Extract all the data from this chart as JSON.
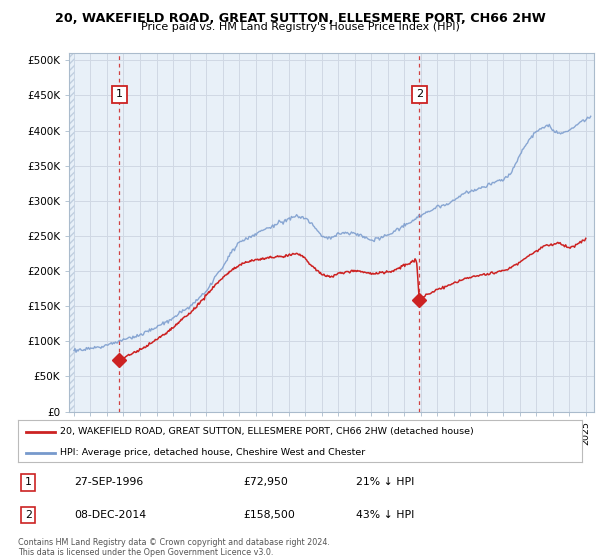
{
  "title1": "20, WAKEFIELD ROAD, GREAT SUTTON, ELLESMERE PORT, CH66 2HW",
  "title2": "Price paid vs. HM Land Registry's House Price Index (HPI)",
  "ylabel_ticks": [
    "£0",
    "£50K",
    "£100K",
    "£150K",
    "£200K",
    "£250K",
    "£300K",
    "£350K",
    "£400K",
    "£450K",
    "£500K"
  ],
  "ylabel_values": [
    0,
    50000,
    100000,
    150000,
    200000,
    250000,
    300000,
    350000,
    400000,
    450000,
    500000
  ],
  "xlim_start": 1993.7,
  "xlim_end": 2025.5,
  "ylim_min": 0,
  "ylim_max": 510000,
  "hpi_color": "#7799cc",
  "price_color": "#cc2222",
  "background_color": "#e8f0f8",
  "hatch_edge_color": "#c0cfe0",
  "grid_color": "#d0d8e4",
  "marker1_date": 1996.74,
  "marker1_price": 72950,
  "marker1_label": "1",
  "marker2_date": 2014.92,
  "marker2_price": 158500,
  "marker2_label": "2",
  "legend_line1": "20, WAKEFIELD ROAD, GREAT SUTTON, ELLESMERE PORT, CH66 2HW (detached house)",
  "legend_line2": "HPI: Average price, detached house, Cheshire West and Chester",
  "annot1_date": "27-SEP-1996",
  "annot1_price": "£72,950",
  "annot1_hpi": "21% ↓ HPI",
  "annot2_date": "08-DEC-2014",
  "annot2_price": "£158,500",
  "annot2_hpi": "43% ↓ HPI",
  "footer": "Contains HM Land Registry data © Crown copyright and database right 2024.\nThis data is licensed under the Open Government Licence v3.0."
}
